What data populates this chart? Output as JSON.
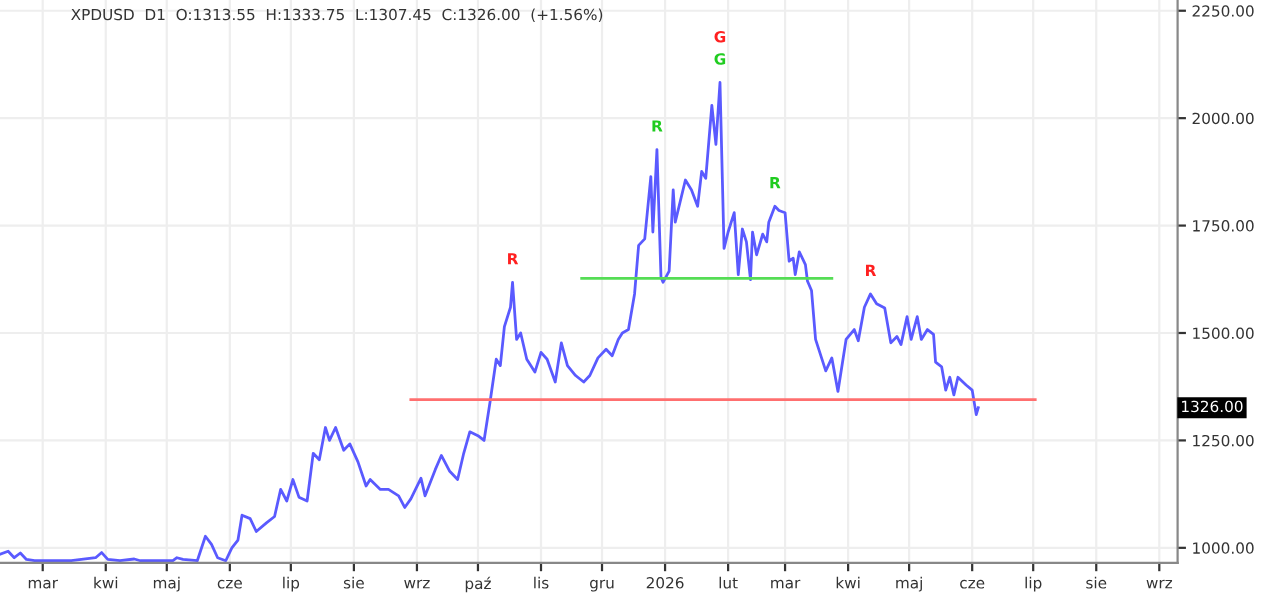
{
  "chart_data": {
    "type": "line",
    "title": "XPDUSD  D1  O:1313.55  H:1333.75  L:1307.45  C:1326.00  (+1.56%)",
    "xlim": [
      "2025-02-08",
      "2026-09-10"
    ],
    "ylim": [
      965,
      2275
    ],
    "xticks": [
      {
        "value": "2025-03-01",
        "label": "mar"
      },
      {
        "value": "2025-04-01",
        "label": "kwi"
      },
      {
        "value": "2025-05-01",
        "label": "maj"
      },
      {
        "value": "2025-06-01",
        "label": "cze"
      },
      {
        "value": "2025-07-01",
        "label": "lip"
      },
      {
        "value": "2025-08-01",
        "label": "sie"
      },
      {
        "value": "2025-09-01",
        "label": "wrz"
      },
      {
        "value": "2025-10-01",
        "label": "paź"
      },
      {
        "value": "2025-11-01",
        "label": "lis"
      },
      {
        "value": "2025-12-01",
        "label": "gru"
      },
      {
        "value": "2026-01-01",
        "label": "2026"
      },
      {
        "value": "2026-02-01",
        "label": "lut"
      },
      {
        "value": "2026-03-01",
        "label": "mar"
      },
      {
        "value": "2026-04-01",
        "label": "kwi"
      },
      {
        "value": "2026-05-01",
        "label": "maj"
      },
      {
        "value": "2026-06-01",
        "label": "cze"
      },
      {
        "value": "2026-07-01",
        "label": "lip"
      },
      {
        "value": "2026-08-01",
        "label": "sie"
      },
      {
        "value": "2026-09-01",
        "label": "wrz"
      }
    ],
    "yticks": [
      {
        "value": 1000,
        "label": "1000.00"
      },
      {
        "value": 1250,
        "label": "1250.00"
      },
      {
        "value": 1500,
        "label": "1500.00"
      },
      {
        "value": 1750,
        "label": "1750.00"
      },
      {
        "value": 2000,
        "label": "2000.00"
      },
      {
        "value": 2250,
        "label": "2250.00"
      }
    ],
    "grid": true,
    "series": [
      {
        "color": "#5a5aff",
        "x": [
          "2025-02-08",
          "2025-02-12",
          "2025-02-15",
          "2025-02-18",
          "2025-02-21",
          "2025-02-25",
          "2025-03-15",
          "2025-03-27",
          "2025-03-30",
          "2025-04-02",
          "2025-04-08",
          "2025-04-15",
          "2025-04-18",
          "2025-05-04",
          "2025-05-06",
          "2025-05-09",
          "2025-05-16",
          "2025-05-20",
          "2025-05-23",
          "2025-05-26",
          "2025-05-30",
          "2025-06-02",
          "2025-06-05",
          "2025-06-07",
          "2025-06-11",
          "2025-06-14",
          "2025-06-19",
          "2025-06-23",
          "2025-06-26",
          "2025-06-29",
          "2025-07-02",
          "2025-07-05",
          "2025-07-09",
          "2025-07-12",
          "2025-07-15",
          "2025-07-18",
          "2025-07-20",
          "2025-07-23",
          "2025-07-27",
          "2025-07-30",
          "2025-08-03",
          "2025-08-07",
          "2025-08-09",
          "2025-08-14",
          "2025-08-18",
          "2025-08-23",
          "2025-08-26",
          "2025-08-29",
          "2025-09-03",
          "2025-09-05",
          "2025-09-10",
          "2025-09-13",
          "2025-09-17",
          "2025-09-21",
          "2025-09-24",
          "2025-09-27",
          "2025-10-01",
          "2025-10-04",
          "2025-10-07",
          "2025-10-10",
          "2025-10-12",
          "2025-10-14",
          "2025-10-17",
          "2025-10-18",
          "2025-10-20",
          "2025-10-22",
          "2025-10-25",
          "2025-10-29",
          "2025-11-01",
          "2025-11-04",
          "2025-11-08",
          "2025-11-11",
          "2025-11-14",
          "2025-11-18",
          "2025-11-22",
          "2025-11-25",
          "2025-11-29",
          "2025-12-03",
          "2025-12-06",
          "2025-12-09",
          "2025-12-11",
          "2025-12-14",
          "2025-12-17",
          "2025-12-19",
          "2025-12-22",
          "2025-12-25",
          "2025-12-26",
          "2025-12-28",
          "2025-12-30",
          "2025-12-31",
          "2026-01-03",
          "2026-01-05",
          "2026-01-06",
          "2026-01-11",
          "2026-01-14",
          "2026-01-17",
          "2026-01-19",
          "2026-01-21",
          "2026-01-24",
          "2026-01-26",
          "2026-01-28",
          "2026-01-30",
          "2026-02-01",
          "2026-02-04",
          "2026-02-06",
          "2026-02-08",
          "2026-02-10",
          "2026-02-12",
          "2026-02-13",
          "2026-02-15",
          "2026-02-18",
          "2026-02-20",
          "2026-02-21",
          "2026-02-24",
          "2026-02-26",
          "2026-03-01",
          "2026-03-03",
          "2026-03-05",
          "2026-03-06",
          "2026-03-08",
          "2026-03-11",
          "2026-03-12",
          "2026-03-14",
          "2026-03-16",
          "2026-03-21",
          "2026-03-24",
          "2026-03-27",
          "2026-03-31",
          "2026-04-04",
          "2026-04-06",
          "2026-04-09",
          "2026-04-12",
          "2026-04-15",
          "2026-04-19",
          "2026-04-22",
          "2026-04-25",
          "2026-04-27",
          "2026-04-30",
          "2026-05-02",
          "2026-05-05",
          "2026-05-07",
          "2026-05-10",
          "2026-05-13",
          "2026-05-14",
          "2026-05-17",
          "2026-05-19",
          "2026-05-21",
          "2026-05-23",
          "2026-05-25",
          "2026-05-29",
          "2026-06-01",
          "2026-06-03",
          "2026-06-04"
        ],
        "values": [
          985,
          992,
          977,
          988,
          973,
          970,
          970,
          977,
          989,
          973,
          970,
          974,
          970,
          970,
          977,
          973,
          970,
          1027,
          1008,
          977,
          970,
          1000,
          1018,
          1076,
          1068,
          1038,
          1058,
          1073,
          1136,
          1109,
          1159,
          1118,
          1109,
          1220,
          1205,
          1280,
          1250,
          1280,
          1227,
          1242,
          1200,
          1144,
          1159,
          1136,
          1136,
          1121,
          1094,
          1114,
          1162,
          1121,
          1182,
          1215,
          1179,
          1159,
          1220,
          1270,
          1261,
          1250,
          1341,
          1439,
          1424,
          1515,
          1560,
          1618,
          1485,
          1500,
          1439,
          1409,
          1455,
          1439,
          1386,
          1477,
          1424,
          1401,
          1386,
          1401,
          1442,
          1462,
          1447,
          1485,
          1500,
          1508,
          1591,
          1704,
          1719,
          1864,
          1735,
          1927,
          1629,
          1618,
          1644,
          1833,
          1758,
          1856,
          1833,
          1795,
          1876,
          1860,
          2030,
          1939,
          2083,
          1697,
          1735,
          1780,
          1636,
          1742,
          1712,
          1624,
          1735,
          1682,
          1730,
          1712,
          1758,
          1795,
          1785,
          1780,
          1667,
          1674,
          1636,
          1689,
          1659,
          1621,
          1599,
          1485,
          1412,
          1442,
          1364,
          1485,
          1508,
          1482,
          1560,
          1591,
          1568,
          1558,
          1477,
          1492,
          1473,
          1538,
          1485,
          1538,
          1485,
          1508,
          1497,
          1432,
          1421,
          1367,
          1397,
          1356,
          1397,
          1379,
          1367,
          1310,
          1326
        ]
      },
      {
        "color": "#ff6f6f",
        "x": [
          "2025-08-29",
          "2026-07-02"
        ],
        "values": [
          1345,
          1345
        ]
      },
      {
        "color": "#55dd55",
        "x": [
          "2025-11-21",
          "2026-03-24"
        ],
        "values": [
          1627,
          1627
        ]
      }
    ],
    "annotations": [
      {
        "text": "R",
        "x": "2025-10-18",
        "y": 1618
      },
      {
        "text": "R",
        "x": "2025-12-28",
        "y": 1927
      },
      {
        "text": "G",
        "x": "2026-01-28",
        "y": 2083
      },
      {
        "text": "G",
        "x": "2026-01-28",
        "y": 2083
      },
      {
        "text": "R",
        "x": "2026-02-24",
        "y": 1795
      },
      {
        "text": "R",
        "x": "2026-04-12",
        "y": 1591
      },
      "1326.00"
    ]
  }
}
